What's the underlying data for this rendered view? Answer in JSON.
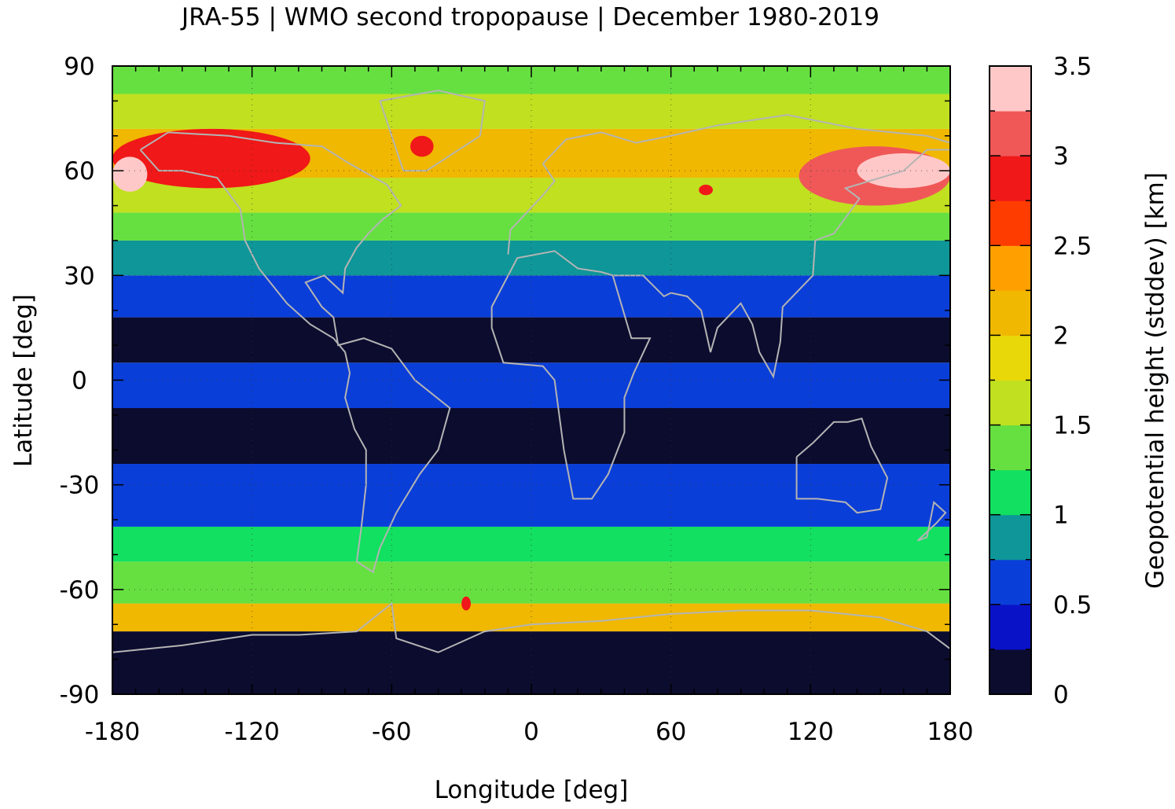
{
  "title": "JRA-55 | WMO second tropopause | December 1980-2019",
  "xlabel": "Longitude [deg]",
  "ylabel": "Latitude [deg]",
  "colorbar_label": "Geopotential height (stddev) [km]",
  "x_ticks": [
    "-180",
    "-120",
    "-60",
    "0",
    "60",
    "120",
    "180"
  ],
  "y_ticks": [
    "90",
    "60",
    "30",
    "0",
    "-30",
    "-60",
    "-90"
  ],
  "colorbar_ticks": [
    "0",
    "0.5",
    "1",
    "1.5",
    "2",
    "2.5",
    "3",
    "3.5"
  ],
  "colors": {
    "levels": [
      "#0b0c2e",
      "#0a12c8",
      "#0a3ed8",
      "#0e9698",
      "#12e060",
      "#66e040",
      "#c0e020",
      "#e8d80a",
      "#f0b800",
      "#ffa000",
      "#ff3c00",
      "#f01818",
      "#f05858",
      "#ffc8c8"
    ],
    "coastline": "#b4b4b4"
  },
  "chart_data": {
    "type": "heatmap",
    "title": "JRA-55 | WMO second tropopause | December 1980-2019",
    "xlabel": "Longitude [deg]",
    "ylabel": "Latitude [deg]",
    "xlim": [
      -180,
      180
    ],
    "ylim": [
      -90,
      90
    ],
    "colorbar": {
      "label": "Geopotential height (stddev) [km]",
      "range": [
        0,
        3.5
      ],
      "step": 0.25
    },
    "grid": true,
    "latitude_bands": [
      {
        "lat": [
          -90,
          -72
        ],
        "value": 0.1
      },
      {
        "lat": [
          -72,
          -64
        ],
        "value": 2.0
      },
      {
        "lat": [
          -64,
          -52
        ],
        "value": 1.4
      },
      {
        "lat": [
          -52,
          -42
        ],
        "value": 1.1
      },
      {
        "lat": [
          -42,
          -24
        ],
        "value": 0.6
      },
      {
        "lat": [
          -24,
          -8
        ],
        "value": 0.1
      },
      {
        "lat": [
          -8,
          5
        ],
        "value": 0.6
      },
      {
        "lat": [
          5,
          18
        ],
        "value": 0.1
      },
      {
        "lat": [
          18,
          30
        ],
        "value": 0.6
      },
      {
        "lat": [
          30,
          40
        ],
        "value": 0.9
      },
      {
        "lat": [
          40,
          48
        ],
        "value": 1.3
      },
      {
        "lat": [
          48,
          58
        ],
        "value": 1.7
      },
      {
        "lat": [
          58,
          72
        ],
        "value": 2.0
      },
      {
        "lat": [
          72,
          82
        ],
        "value": 1.6
      },
      {
        "lat": [
          82,
          90
        ],
        "value": 1.3
      }
    ],
    "hotspots": [
      {
        "lon": [
          -180,
          -95
        ],
        "lat": [
          55,
          72
        ],
        "value": 2.9
      },
      {
        "lon": [
          -180,
          -165
        ],
        "lat": [
          54,
          64
        ],
        "value": 3.5
      },
      {
        "lon": [
          -52,
          -42
        ],
        "lat": [
          64,
          70
        ],
        "value": 2.8
      },
      {
        "lon": [
          115,
          180
        ],
        "lat": [
          50,
          67
        ],
        "value": 3.0
      },
      {
        "lon": [
          140,
          180
        ],
        "lat": [
          55,
          65
        ],
        "value": 3.5
      },
      {
        "lon": [
          72,
          78
        ],
        "lat": [
          53,
          56
        ],
        "value": 2.8
      },
      {
        "lon": [
          -30,
          -26
        ],
        "lat": [
          -66,
          -62
        ],
        "value": 2.8
      }
    ]
  }
}
